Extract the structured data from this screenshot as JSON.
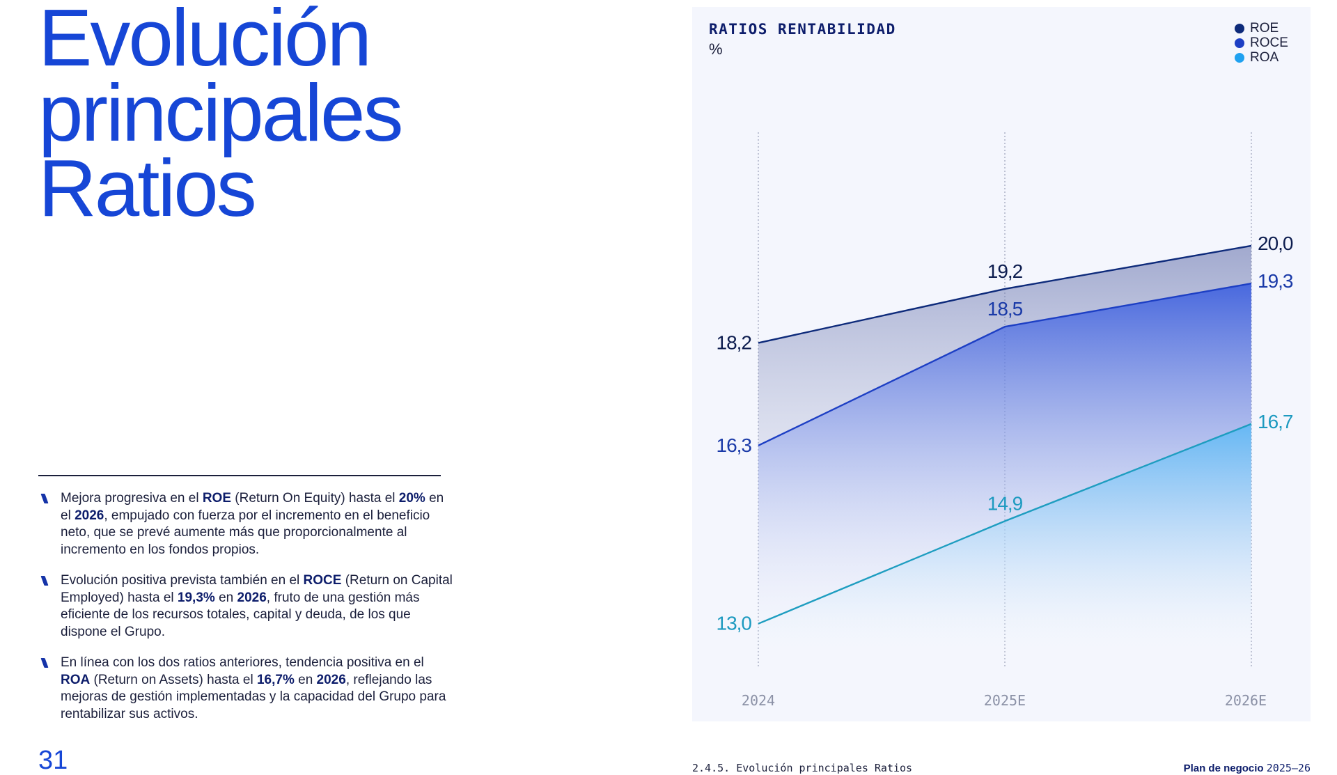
{
  "page": {
    "title_lines": [
      "Evolución",
      "principales",
      "Ratios"
    ],
    "page_number": "31",
    "footer_section": "2.4.5. Evolución principales Ratios",
    "footer_plan_bold": "Plan de negocio",
    "footer_plan_years": "2025–26"
  },
  "bullets": [
    {
      "segments": [
        {
          "t": "Mejora progresiva en el ",
          "b": false
        },
        {
          "t": "ROE",
          "b": true
        },
        {
          "t": " (Return On Equity) hasta el ",
          "b": false
        },
        {
          "t": "20%",
          "b": true
        },
        {
          "t": " en el ",
          "b": false
        },
        {
          "t": "2026",
          "b": true
        },
        {
          "t": ", empujado con fuerza por el incremento en el beneficio neto, que se prevé aumente más que proporcionalmente al incremento en los fondos propios.",
          "b": false
        }
      ]
    },
    {
      "segments": [
        {
          "t": "Evolución positiva prevista también en el ",
          "b": false
        },
        {
          "t": "ROCE",
          "b": true
        },
        {
          "t": " (Return on Capital Employed) hasta el ",
          "b": false
        },
        {
          "t": "19,3%",
          "b": true
        },
        {
          "t": " en ",
          "b": false
        },
        {
          "t": "2026",
          "b": true
        },
        {
          "t": ", fruto de una gestión más eficiente de los recursos totales, capital y deuda, de los que dispone el Grupo.",
          "b": false
        }
      ]
    },
    {
      "segments": [
        {
          "t": "En línea con los dos ratios anteriores, tendencia positiva en el ",
          "b": false
        },
        {
          "t": "ROA",
          "b": true
        },
        {
          "t": " (Return on Assets) hasta el ",
          "b": false
        },
        {
          "t": "16,7%",
          "b": true
        },
        {
          "t": " en ",
          "b": false
        },
        {
          "t": "2026",
          "b": true
        },
        {
          "t": ", reflejando las mejoras de gestión implementadas y la capacidad del Grupo para rentabilizar sus activos.",
          "b": false
        }
      ]
    }
  ],
  "chart_data": {
    "type": "line",
    "title": "RATIOS RENTABILIDAD",
    "unit": "%",
    "categories": [
      "2024",
      "2025E",
      "2026E"
    ],
    "series": [
      {
        "name": "ROE",
        "values": [
          18.2,
          19.2,
          20.0
        ],
        "labels": [
          "18,2",
          "19,2",
          "20,0"
        ],
        "color": "#0d2a7a",
        "label_color": "#0d1d4f"
      },
      {
        "name": "ROCE",
        "values": [
          16.3,
          18.5,
          19.3
        ],
        "labels": [
          "16,3",
          "18,5",
          "19,3"
        ],
        "color": "#1d3fc4",
        "label_color": "#1a3aa8"
      },
      {
        "name": "ROA",
        "values": [
          13.0,
          14.9,
          16.7
        ],
        "labels": [
          "13,0",
          "14,9",
          "16,7"
        ],
        "color": "#1e9dc0",
        "label_color": "#1d9ac0"
      }
    ],
    "legend_colors": [
      "#0d2a7a",
      "#1d3fc4",
      "#1fa1f0"
    ],
    "ylim": [
      12.3,
      22.1
    ],
    "legend_position": "top-right",
    "grid": "vertical-dotted"
  }
}
